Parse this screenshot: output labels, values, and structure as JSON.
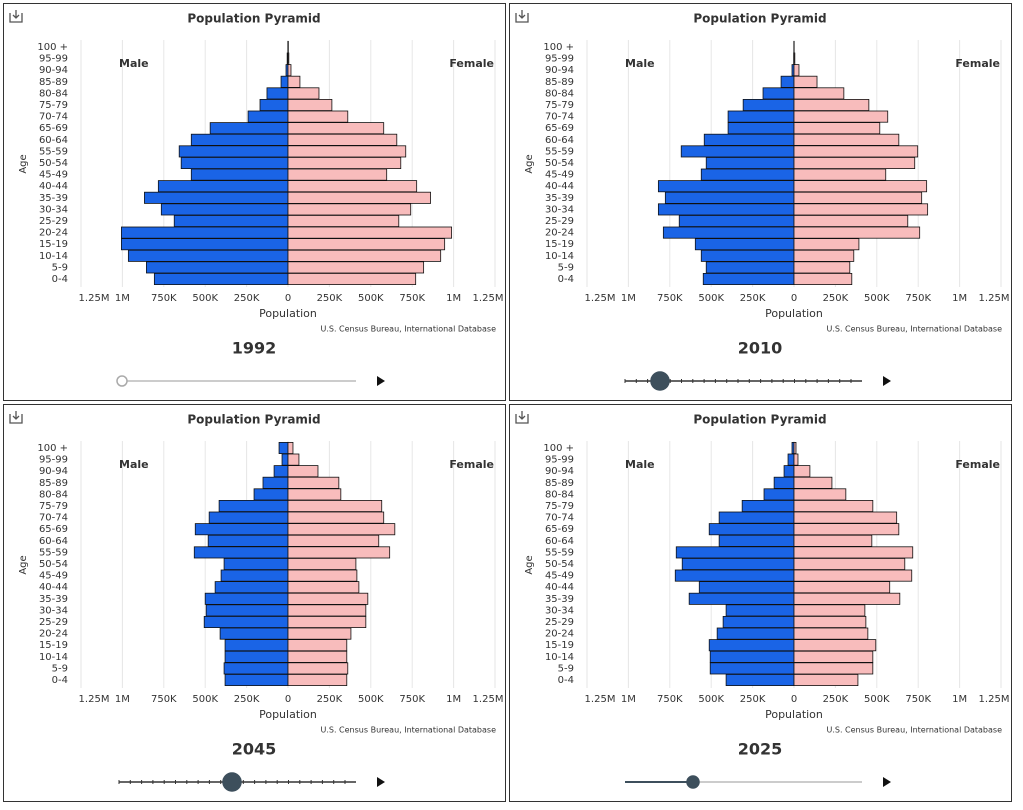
{
  "chart_data": [
    {
      "type": "pyramid",
      "title": "Population Pyramid",
      "year_label": "1992",
      "ylabel": "Age",
      "xlabel": "Population",
      "source": "U.S. Census Bureau, International Database",
      "categories": [
        "0-4",
        "5-9",
        "10-14",
        "15-19",
        "20-24",
        "25-29",
        "30-34",
        "35-39",
        "40-44",
        "45-49",
        "50-54",
        "55-59",
        "60-64",
        "65-69",
        "70-74",
        "75-79",
        "80-84",
        "85-89",
        "90-94",
        "95-99",
        "100 +"
      ],
      "series": [
        {
          "name": "Male",
          "color": "#1a64e6",
          "side": "left",
          "values": [
            807000,
            855000,
            964000,
            1006000,
            1006000,
            687000,
            765000,
            867000,
            783000,
            584000,
            645000,
            657000,
            584000,
            470000,
            241000,
            169000,
            127000,
            42000,
            12000,
            5000,
            1000
          ]
        },
        {
          "name": "Female",
          "color": "#f8bcbc",
          "side": "right",
          "values": [
            771000,
            819000,
            922000,
            946000,
            988000,
            669000,
            741000,
            861000,
            777000,
            596000,
            681000,
            711000,
            657000,
            578000,
            361000,
            265000,
            187000,
            72000,
            18000,
            5000,
            2000
          ]
        }
      ],
      "xlim": [
        -1250000,
        1250000
      ],
      "xticks": [
        {
          "value": -1250000,
          "label": "1.25M"
        },
        {
          "value": -1000000,
          "label": "1M"
        },
        {
          "value": -750000,
          "label": "750K"
        },
        {
          "value": -500000,
          "label": "500K"
        },
        {
          "value": -250000,
          "label": "250K"
        },
        0,
        {
          "value": 250000,
          "label": "250K"
        },
        {
          "value": 500000,
          "label": "500K"
        },
        {
          "value": 750000,
          "label": "750K"
        },
        {
          "value": 1000000,
          "label": "1M"
        },
        {
          "value": 1250000,
          "label": "1.25M"
        }
      ],
      "grid": true
    },
    {
      "type": "pyramid",
      "title": "Population Pyramid",
      "year_label": "2010",
      "ylabel": "Age",
      "xlabel": "Population",
      "source": "U.S. Census Bureau, International Database",
      "categories": [
        "0-4",
        "5-9",
        "10-14",
        "15-19",
        "20-24",
        "25-29",
        "30-34",
        "35-39",
        "40-44",
        "45-49",
        "50-54",
        "55-59",
        "60-64",
        "65-69",
        "70-74",
        "75-79",
        "80-84",
        "85-89",
        "90-94",
        "95-99",
        "100 +"
      ],
      "series": [
        {
          "name": "Male",
          "color": "#1a64e6",
          "side": "left",
          "values": [
            548000,
            530000,
            560000,
            596000,
            789000,
            693000,
            819000,
            777000,
            819000,
            560000,
            530000,
            681000,
            542000,
            398000,
            398000,
            307000,
            187000,
            78000,
            12000,
            2000,
            1000
          ]
        },
        {
          "name": "Female",
          "color": "#f8bcbc",
          "side": "right",
          "values": [
            349000,
            337000,
            361000,
            392000,
            759000,
            687000,
            807000,
            771000,
            801000,
            554000,
            729000,
            747000,
            633000,
            518000,
            566000,
            452000,
            301000,
            139000,
            30000,
            5000,
            1000
          ]
        }
      ],
      "xlim": [
        -1250000,
        1250000
      ],
      "xticks": [
        {
          "value": -1250000,
          "label": "1.25M"
        },
        {
          "value": -1000000,
          "label": "1M"
        },
        {
          "value": -750000,
          "label": "750K"
        },
        {
          "value": -500000,
          "label": "500K"
        },
        {
          "value": -250000,
          "label": "250K"
        },
        0,
        {
          "value": 250000,
          "label": "250K"
        },
        {
          "value": 500000,
          "label": "500K"
        },
        {
          "value": 750000,
          "label": "750K"
        },
        {
          "value": 1000000,
          "label": "1M"
        },
        {
          "value": 1250000,
          "label": "1.25M"
        }
      ],
      "grid": true
    },
    {
      "type": "pyramid",
      "title": "Population Pyramid",
      "year_label": "2045",
      "ylabel": "Age",
      "xlabel": "Population",
      "source": "U.S. Census Bureau, International Database",
      "categories": [
        "0-4",
        "5-9",
        "10-14",
        "15-19",
        "20-24",
        "25-29",
        "30-34",
        "35-39",
        "40-44",
        "45-49",
        "50-54",
        "55-59",
        "60-64",
        "65-69",
        "70-74",
        "75-79",
        "80-84",
        "85-89",
        "90-94",
        "95-99",
        "100 +"
      ],
      "series": [
        {
          "name": "Male",
          "color": "#1a64e6",
          "side": "left",
          "values": [
            380000,
            386000,
            380000,
            380000,
            410000,
            506000,
            494000,
            500000,
            440000,
            404000,
            386000,
            566000,
            482000,
            560000,
            476000,
            416000,
            205000,
            151000,
            84000,
            36000,
            54000
          ]
        },
        {
          "name": "Female",
          "color": "#f8bcbc",
          "side": "right",
          "values": [
            355000,
            361000,
            355000,
            355000,
            380000,
            470000,
            470000,
            482000,
            428000,
            416000,
            410000,
            614000,
            548000,
            645000,
            578000,
            566000,
            319000,
            307000,
            181000,
            66000,
            30000
          ]
        }
      ],
      "xlim": [
        -1250000,
        1250000
      ],
      "xticks": [
        {
          "value": -1250000,
          "label": "1.25M"
        },
        {
          "value": -1000000,
          "label": "1M"
        },
        {
          "value": -750000,
          "label": "750K"
        },
        {
          "value": -500000,
          "label": "500K"
        },
        {
          "value": -250000,
          "label": "250K"
        },
        0,
        {
          "value": 250000,
          "label": "250K"
        },
        {
          "value": 500000,
          "label": "500K"
        },
        {
          "value": 750000,
          "label": "750K"
        },
        {
          "value": 1000000,
          "label": "1M"
        },
        {
          "value": 1250000,
          "label": "1.25M"
        }
      ],
      "grid": true
    },
    {
      "type": "pyramid",
      "title": "Population Pyramid",
      "year_label": "2025",
      "ylabel": "Age",
      "xlabel": "Population",
      "source": "U.S. Census Bureau, International Database",
      "categories": [
        "0-4",
        "5-9",
        "10-14",
        "15-19",
        "20-24",
        "25-29",
        "30-34",
        "35-39",
        "40-44",
        "45-49",
        "50-54",
        "55-59",
        "60-64",
        "65-69",
        "70-74",
        "75-79",
        "80-84",
        "85-89",
        "90-94",
        "95-99",
        "100 +"
      ],
      "series": [
        {
          "name": "Male",
          "color": "#1a64e6",
          "side": "left",
          "values": [
            410000,
            506000,
            506000,
            512000,
            464000,
            428000,
            410000,
            633000,
            572000,
            717000,
            675000,
            711000,
            452000,
            512000,
            452000,
            313000,
            181000,
            120000,
            60000,
            36000,
            12000
          ]
        },
        {
          "name": "Female",
          "color": "#f8bcbc",
          "side": "right",
          "values": [
            386000,
            476000,
            476000,
            494000,
            446000,
            434000,
            428000,
            639000,
            578000,
            711000,
            669000,
            717000,
            470000,
            633000,
            620000,
            476000,
            313000,
            229000,
            96000,
            24000,
            12000
          ]
        }
      ],
      "xlim": [
        -1250000,
        1250000
      ],
      "xticks": [
        {
          "value": -1250000,
          "label": "1.25M"
        },
        {
          "value": -1000000,
          "label": "1M"
        },
        {
          "value": -750000,
          "label": "750K"
        },
        {
          "value": -500000,
          "label": "500K"
        },
        {
          "value": -250000,
          "label": "250K"
        },
        0,
        {
          "value": 250000,
          "label": "250K"
        },
        {
          "value": 500000,
          "label": "500K"
        },
        {
          "value": 750000,
          "label": "750K"
        },
        {
          "value": 1000000,
          "label": "1M"
        },
        {
          "value": 1250000,
          "label": "1.25M"
        }
      ],
      "grid": true
    }
  ]
}
